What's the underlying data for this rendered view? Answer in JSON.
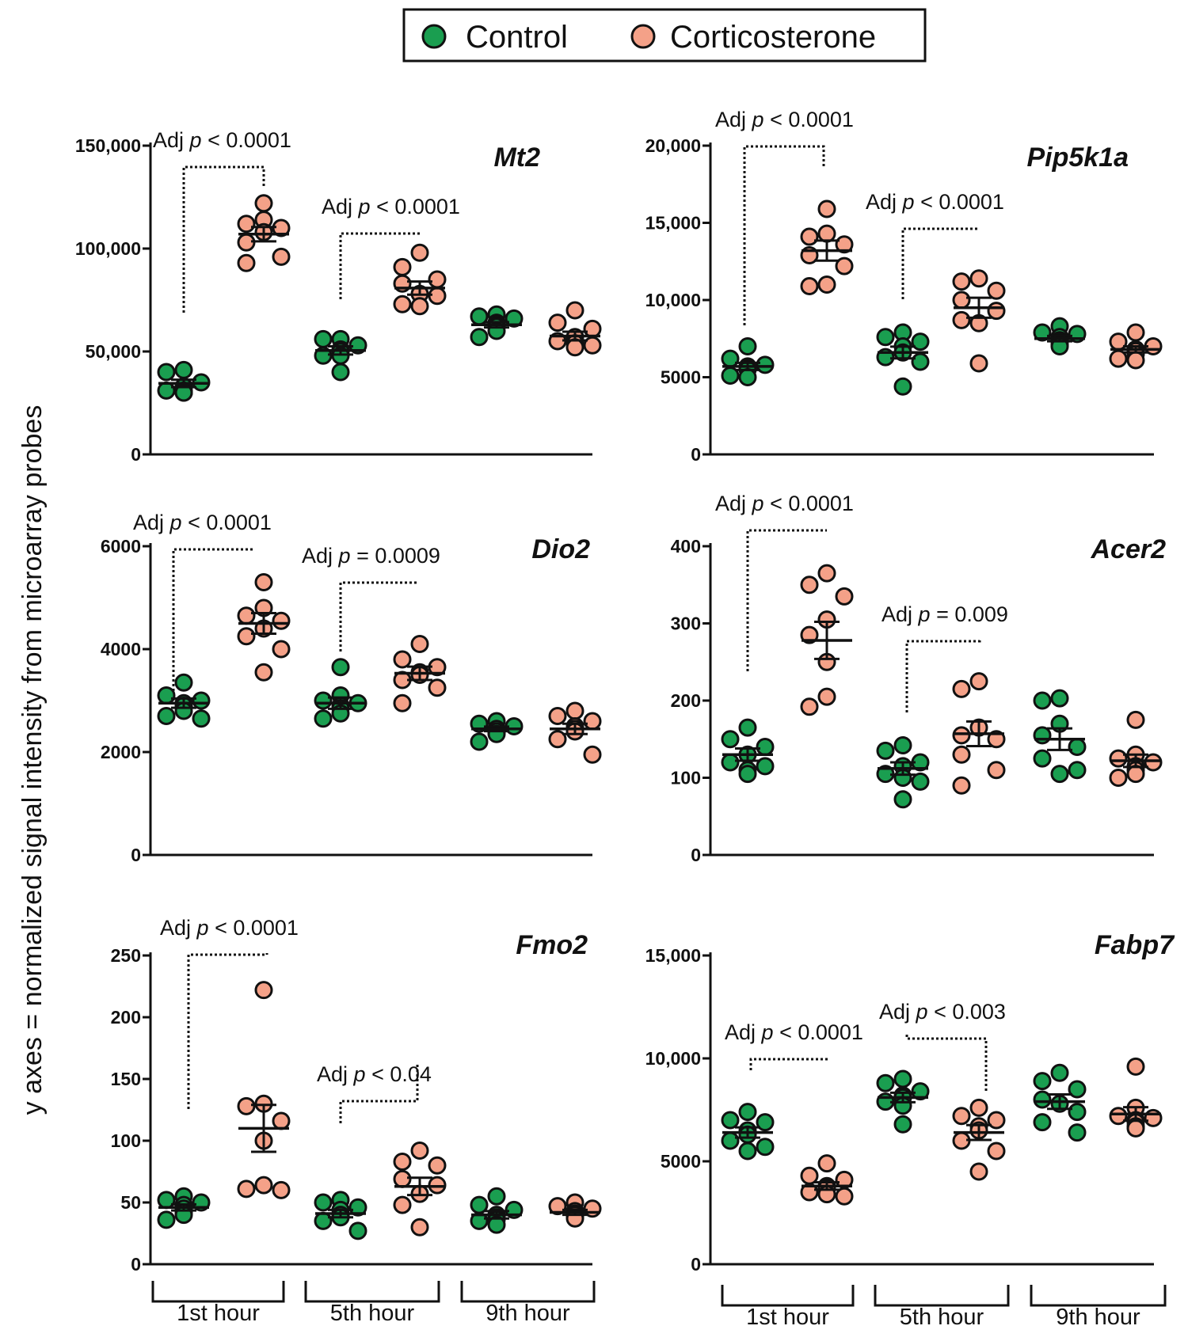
{
  "colors": {
    "control": "#1a9e50",
    "corticosterone": "#f4a188",
    "stroke": "#111111"
  },
  "legend": {
    "control": "Control",
    "corticosterone": "Corticosterone"
  },
  "y_label": "y axes = normalized signal intensity from microarray probes",
  "groups": [
    "1st hour",
    "5th hour",
    "9th hour"
  ],
  "annot_prefix": "Adj ",
  "annot_p": "p",
  "chart_data": [
    {
      "type": "scatter",
      "gene": "Mt2",
      "ylim": [
        0,
        150000
      ],
      "yticks": [
        0,
        50000,
        100000,
        150000
      ],
      "yticklabels": [
        "0",
        "50,000",
        "100,000",
        "150,000"
      ],
      "series": [
        {
          "name": "Control",
          "time": "1st hour",
          "points": [
            41000,
            40000,
            35000,
            33000,
            30000,
            30000,
            31000,
            31000
          ],
          "mean": 34500,
          "sem": 1800
        },
        {
          "name": "Corticosterone",
          "time": "1st hour",
          "points": [
            122000,
            112000,
            114000,
            110000,
            108000,
            103000,
            96000,
            93000
          ],
          "mean": 107000,
          "sem": 3500
        },
        {
          "name": "Control",
          "time": "5th hour",
          "points": [
            56000,
            56000,
            53000,
            51000,
            50000,
            48000,
            48000,
            40000
          ],
          "mean": 50500,
          "sem": 2000
        },
        {
          "name": "Corticosterone",
          "time": "5th hour",
          "points": [
            98000,
            91000,
            85000,
            83000,
            78000,
            77000,
            73000,
            72000
          ],
          "mean": 80800,
          "sem": 3200
        },
        {
          "name": "Control",
          "time": "9th hour",
          "points": [
            68000,
            67000,
            66000,
            64000,
            63000,
            62000,
            60000,
            57000
          ],
          "mean": 63000,
          "sem": 1300
        },
        {
          "name": "Corticosterone",
          "time": "9th hour",
          "points": [
            70000,
            64000,
            61000,
            57000,
            55000,
            54000,
            53000,
            52000
          ],
          "mean": 57500,
          "sem": 2100
        }
      ],
      "annotations": [
        {
          "text": "< 0.0001",
          "bracket_from": "1st hour"
        },
        {
          "text": "< 0.0001",
          "bracket_from": "5th hour"
        }
      ]
    },
    {
      "type": "scatter",
      "gene": "Pip5k1a",
      "ylim": [
        0,
        20000
      ],
      "yticks": [
        0,
        5000,
        10000,
        15000,
        20000
      ],
      "yticklabels": [
        "0",
        "5000",
        "10,000",
        "15,000",
        "20,000"
      ],
      "series": [
        {
          "name": "Control",
          "time": "1st hour",
          "points": [
            7000,
            6200,
            5800,
            5700,
            5600,
            5500,
            5100,
            5000
          ],
          "mean": 5700,
          "sem": 230
        },
        {
          "name": "Corticosterone",
          "time": "1st hour",
          "points": [
            15900,
            14300,
            14100,
            13600,
            12900,
            12200,
            11000,
            10900
          ],
          "mean": 13200,
          "sem": 650
        },
        {
          "name": "Control",
          "time": "5th hour",
          "points": [
            7900,
            7600,
            7300,
            7000,
            6600,
            6300,
            6000,
            4400
          ],
          "mean": 6600,
          "sem": 380
        },
        {
          "name": "Corticosterone",
          "time": "5th hour",
          "points": [
            11400,
            11200,
            10600,
            10000,
            9300,
            8700,
            8500,
            5900
          ],
          "mean": 9500,
          "sem": 650
        },
        {
          "name": "Control",
          "time": "9th hour",
          "points": [
            8300,
            7900,
            7800,
            7600,
            7400,
            7300,
            7100,
            7000
          ],
          "mean": 7500,
          "sem": 170
        },
        {
          "name": "Corticosterone",
          "time": "9th hour",
          "points": [
            7900,
            7300,
            7000,
            6800,
            6700,
            6500,
            6200,
            6100
          ],
          "mean": 6800,
          "sem": 200
        }
      ],
      "annotations": [
        {
          "text": "< 0.0001",
          "bracket_from": "1st hour"
        },
        {
          "text": "< 0.0001",
          "bracket_from": "5th hour"
        }
      ]
    },
    {
      "type": "scatter",
      "gene": "Dio2",
      "ylim": [
        0,
        6000
      ],
      "yticks": [
        0,
        2000,
        4000,
        6000
      ],
      "yticklabels": [
        "0",
        "2000",
        "4000",
        "6000"
      ],
      "series": [
        {
          "name": "Control",
          "time": "1st hour",
          "points": [
            3350,
            3100,
            3000,
            2950,
            2900,
            2800,
            2700,
            2650
          ],
          "mean": 2950,
          "sem": 90
        },
        {
          "name": "Corticosterone",
          "time": "1st hour",
          "points": [
            5300,
            4800,
            4650,
            4550,
            4400,
            4250,
            4000,
            3550
          ],
          "mean": 4500,
          "sem": 200
        },
        {
          "name": "Control",
          "time": "5th hour",
          "points": [
            3650,
            3100,
            3000,
            2950,
            2900,
            2850,
            2750,
            2650
          ],
          "mean": 2950,
          "sem": 110
        },
        {
          "name": "Corticosterone",
          "time": "5th hour",
          "points": [
            4100,
            3800,
            3650,
            3550,
            3500,
            3400,
            3250,
            2950
          ],
          "mean": 3530,
          "sem": 130
        },
        {
          "name": "Control",
          "time": "9th hour",
          "points": [
            2600,
            2550,
            2500,
            2450,
            2400,
            2400,
            2350,
            2200
          ],
          "mean": 2450,
          "sem": 45
        },
        {
          "name": "Corticosterone",
          "time": "9th hour",
          "points": [
            2800,
            2700,
            2600,
            2500,
            2450,
            2400,
            2250,
            1950
          ],
          "mean": 2450,
          "sem": 100
        }
      ],
      "annotations": [
        {
          "text": "< 0.0001",
          "bracket_from": "1st hour"
        },
        {
          "text": "= 0.0009",
          "bracket_from": "5th hour"
        }
      ]
    },
    {
      "type": "scatter",
      "gene": "Acer2",
      "ylim": [
        0,
        400
      ],
      "yticks": [
        0,
        100,
        200,
        300,
        400
      ],
      "yticklabels": [
        "0",
        "100",
        "200",
        "300",
        "400"
      ],
      "series": [
        {
          "name": "Control",
          "time": "1st hour",
          "points": [
            165,
            150,
            140,
            130,
            120,
            115,
            110,
            105
          ],
          "mean": 130,
          "sem": 8
        },
        {
          "name": "Corticosterone",
          "time": "1st hour",
          "points": [
            365,
            350,
            335,
            305,
            285,
            250,
            205,
            192
          ],
          "mean": 278,
          "sem": 24
        },
        {
          "name": "Control",
          "time": "5th hour",
          "points": [
            142,
            135,
            120,
            115,
            105,
            100,
            95,
            72
          ],
          "mean": 112,
          "sem": 8
        },
        {
          "name": "Corticosterone",
          "time": "5th hour",
          "points": [
            225,
            215,
            165,
            155,
            150,
            130,
            110,
            90
          ],
          "mean": 157,
          "sem": 16
        },
        {
          "name": "Control",
          "time": "9th hour",
          "points": [
            203,
            200,
            170,
            155,
            140,
            125,
            110,
            105
          ],
          "mean": 150,
          "sem": 14
        },
        {
          "name": "Corticosterone",
          "time": "9th hour",
          "points": [
            175,
            130,
            125,
            120,
            115,
            110,
            105,
            100
          ],
          "mean": 122,
          "sem": 8
        }
      ],
      "annotations": [
        {
          "text": "< 0.0001",
          "bracket_from": "1st hour"
        },
        {
          "text": "= 0.009",
          "bracket_from": "5th hour"
        }
      ]
    },
    {
      "type": "scatter",
      "gene": "Fmo2",
      "ylim": [
        0,
        250
      ],
      "yticks": [
        0,
        50,
        100,
        150,
        200,
        250
      ],
      "yticklabels": [
        "0",
        "50",
        "100",
        "150",
        "200",
        "250"
      ],
      "series": [
        {
          "name": "Control",
          "time": "1st hour",
          "points": [
            55,
            52,
            50,
            48,
            45,
            42,
            40,
            36
          ],
          "mean": 46,
          "sem": 2.5
        },
        {
          "name": "Corticosterone",
          "time": "1st hour",
          "points": [
            222,
            130,
            128,
            116,
            100,
            64,
            61,
            60
          ],
          "mean": 110,
          "sem": 19
        },
        {
          "name": "Control",
          "time": "5th hour",
          "points": [
            52,
            50,
            46,
            44,
            40,
            38,
            35,
            27
          ],
          "mean": 41,
          "sem": 3
        },
        {
          "name": "Corticosterone",
          "time": "5th hour",
          "points": [
            92,
            83,
            80,
            69,
            64,
            57,
            48,
            30
          ],
          "mean": 63,
          "sem": 7
        },
        {
          "name": "Control",
          "time": "9th hour",
          "points": [
            55,
            48,
            44,
            40,
            38,
            36,
            35,
            32
          ],
          "mean": 40,
          "sem": 3
        },
        {
          "name": "Corticosterone",
          "time": "9th hour",
          "points": [
            50,
            47,
            45,
            43,
            41,
            40,
            38,
            37
          ],
          "mean": 42,
          "sem": 2
        }
      ],
      "annotations": [
        {
          "text": "< 0.0001",
          "bracket_from": "1st hour"
        },
        {
          "text": "< 0.04",
          "bracket_from": "5th hour"
        }
      ]
    },
    {
      "type": "scatter",
      "gene": "Fabp7",
      "ylim": [
        0,
        15000
      ],
      "yticks": [
        0,
        5000,
        10000,
        15000
      ],
      "yticklabels": [
        "0",
        "5000",
        "10,000",
        "15,000"
      ],
      "series": [
        {
          "name": "Control",
          "time": "1st hour",
          "points": [
            7400,
            7000,
            6900,
            6500,
            6300,
            6000,
            5700,
            5500
          ],
          "mean": 6400,
          "sem": 250
        },
        {
          "name": "Corticosterone",
          "time": "1st hour",
          "points": [
            4900,
            4300,
            4100,
            3800,
            3700,
            3500,
            3400,
            3300
          ],
          "mean": 3800,
          "sem": 180
        },
        {
          "name": "Control",
          "time": "5th hour",
          "points": [
            9000,
            8800,
            8400,
            8200,
            8100,
            7900,
            7700,
            6800
          ],
          "mean": 8100,
          "sem": 230
        },
        {
          "name": "Corticosterone",
          "time": "5th hour",
          "points": [
            7600,
            7200,
            7000,
            6700,
            6500,
            6000,
            5500,
            4500
          ],
          "mean": 6400,
          "sem": 360
        },
        {
          "name": "Control",
          "time": "9th hour",
          "points": [
            9300,
            8900,
            8500,
            8000,
            7800,
            7400,
            6900,
            6400
          ],
          "mean": 7900,
          "sem": 350
        },
        {
          "name": "Corticosterone",
          "time": "9th hour",
          "points": [
            9600,
            7600,
            7200,
            7100,
            7000,
            6900,
            6700,
            6600
          ],
          "mean": 7300,
          "sem": 330
        }
      ],
      "annotations": [
        {
          "text": "< 0.0001",
          "bracket_from": "1st hour"
        },
        {
          "text": "< 0.003",
          "bracket_from": "5th hour"
        }
      ]
    }
  ]
}
